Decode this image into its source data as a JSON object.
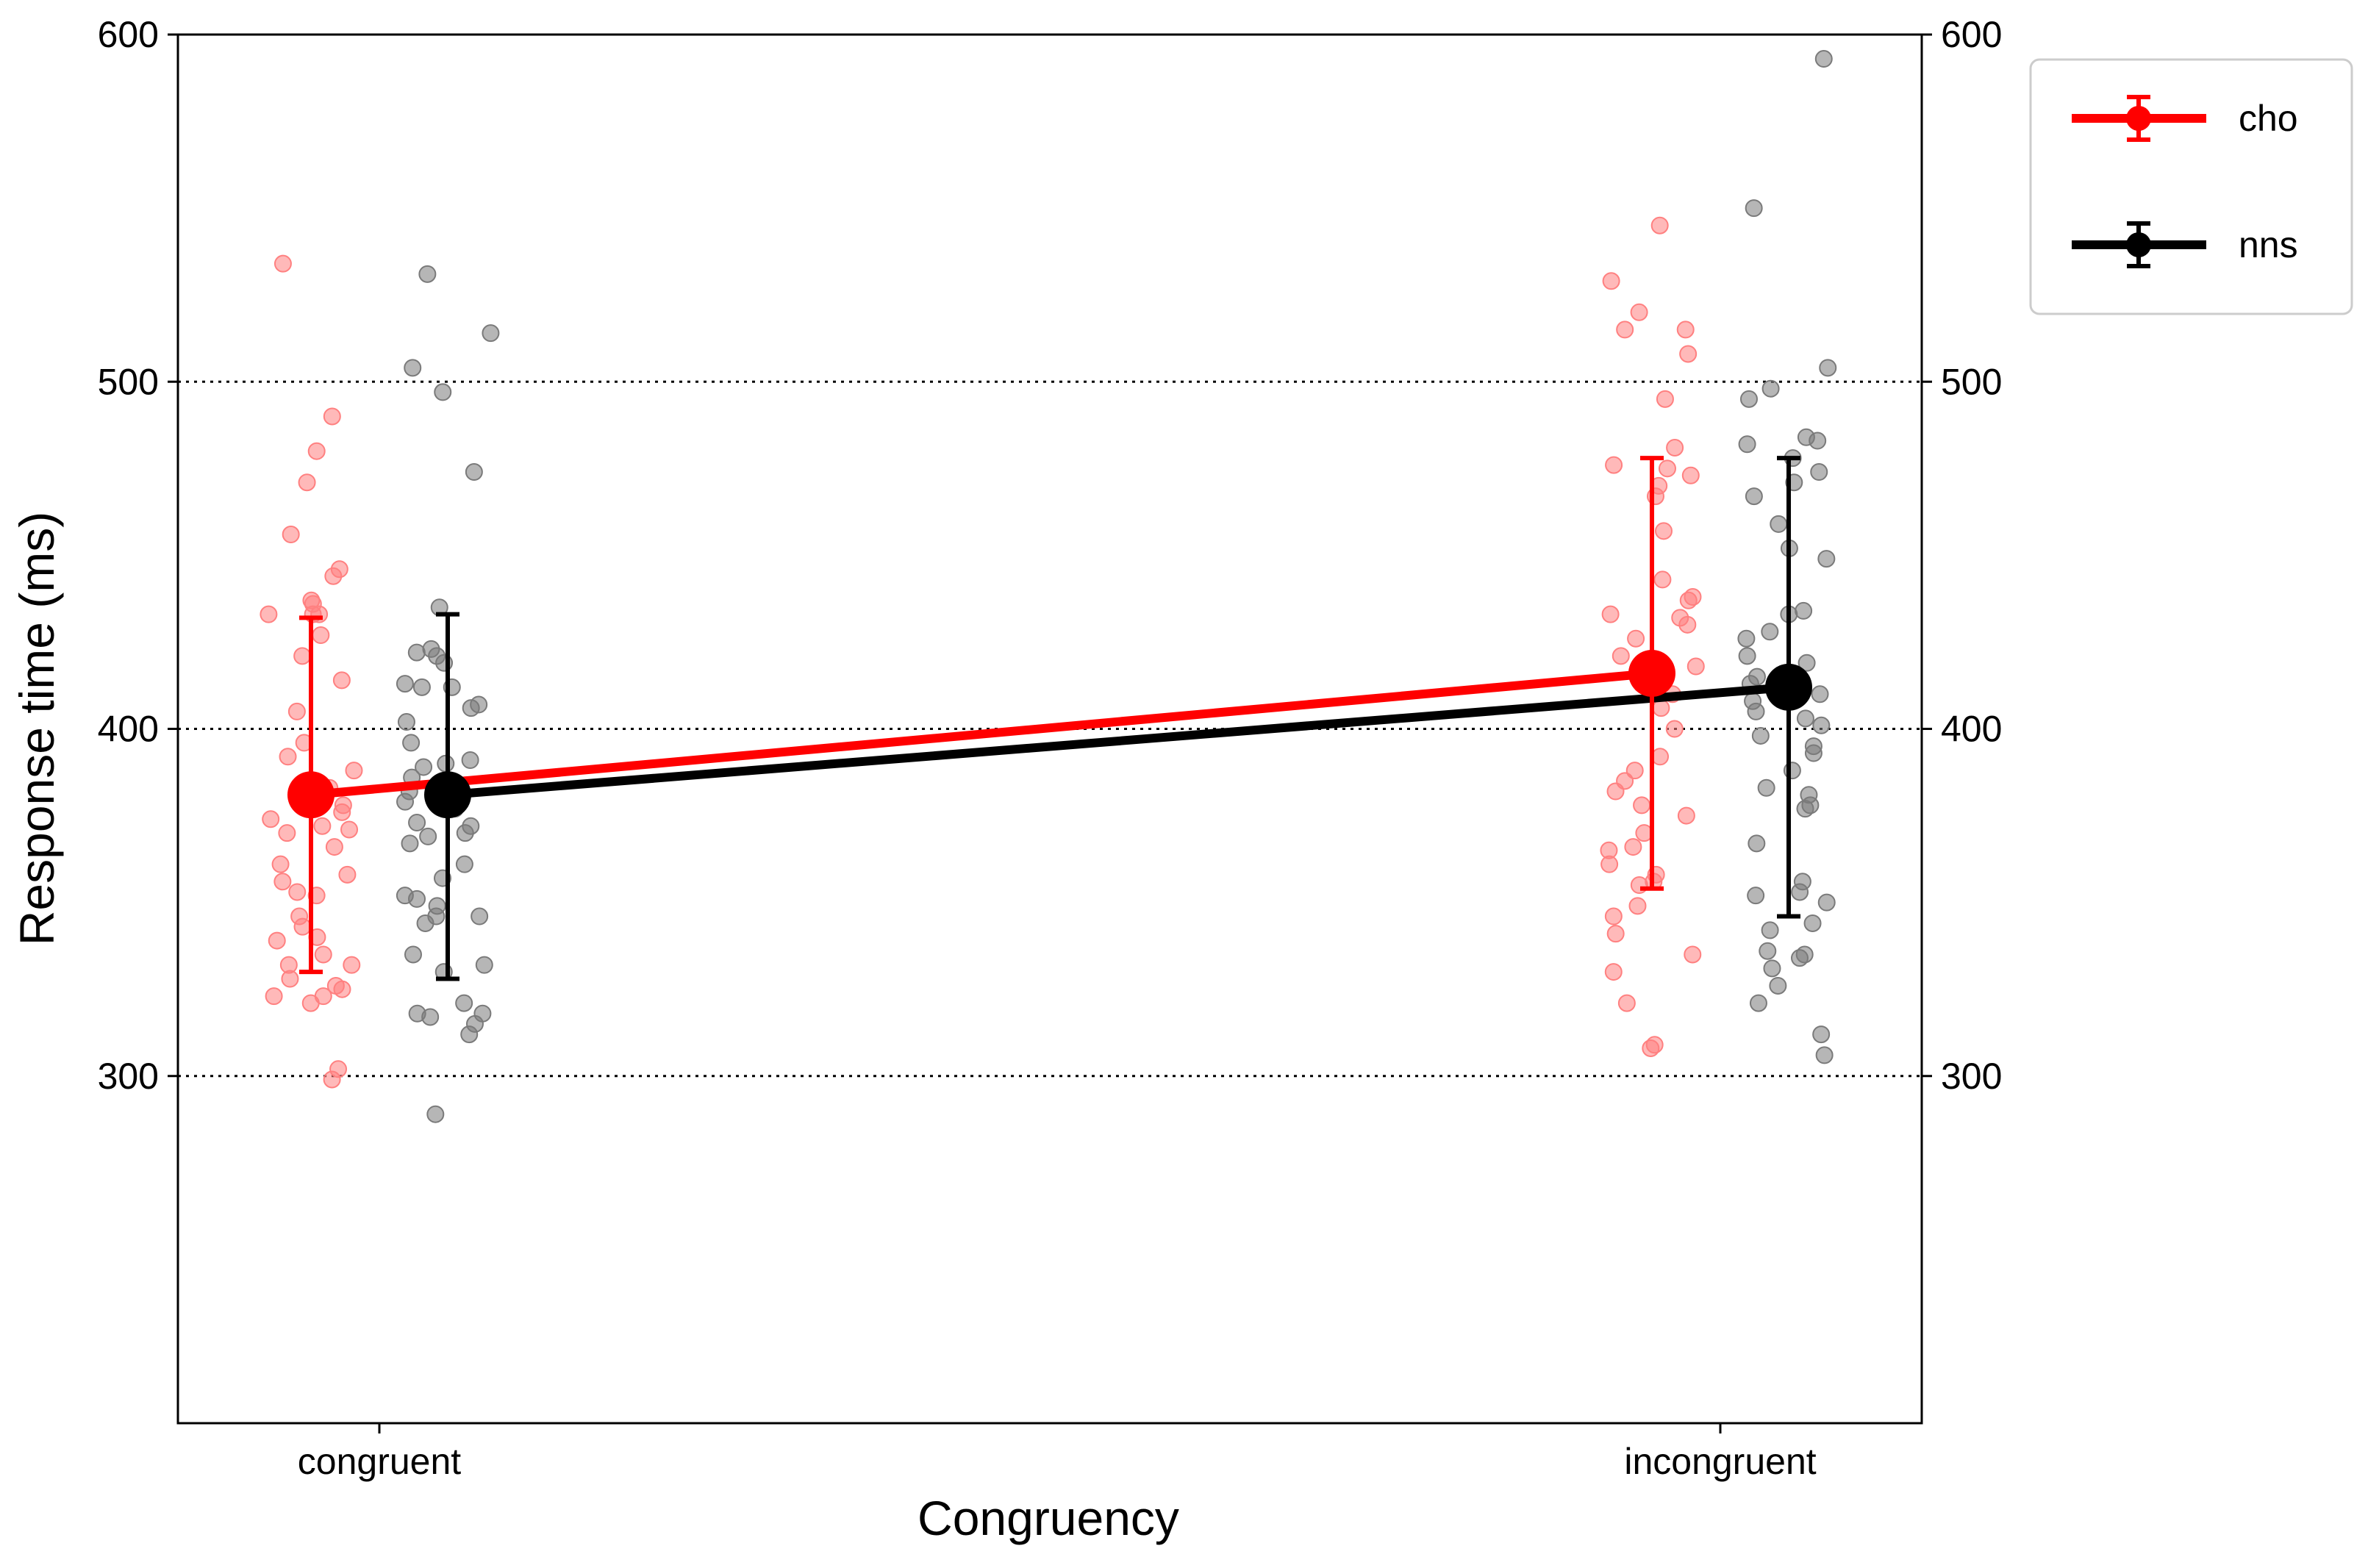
{
  "chart_data": {
    "type": "point",
    "title": "",
    "xlabel": "Congruency",
    "ylabel": "Response time (ms)",
    "ylim": [
      200,
      600
    ],
    "yticks": [
      300,
      400,
      500,
      600
    ],
    "grid": "y dotted at 300/400/500/600",
    "right_axis_ticks": true,
    "legend_position": "top-right outside",
    "categories": [
      "congruent",
      "incongruent"
    ],
    "series": [
      {
        "name": "cho",
        "color": "#ff0000",
        "point_color": "#ff8080",
        "means": [
          381,
          416
        ],
        "errors": [
          [
            330,
            432
          ],
          [
            354,
            478
          ]
        ],
        "points": [
          [
            534,
            490,
            480,
            471,
            456,
            446,
            444,
            437,
            436,
            433,
            433,
            433,
            427,
            421,
            414,
            405,
            396,
            392,
            388,
            383,
            378,
            376,
            374,
            372,
            371,
            370,
            366,
            361,
            358,
            356,
            353,
            352,
            346,
            343,
            340,
            339,
            335,
            332,
            332,
            328,
            326,
            325,
            323,
            323,
            321,
            302,
            299
          ],
          [
            545,
            529,
            520,
            515,
            515,
            508,
            495,
            481,
            476,
            475,
            473,
            470,
            467,
            457,
            443,
            438,
            437,
            433,
            432,
            430,
            426,
            421,
            418,
            415,
            410,
            406,
            400,
            392,
            388,
            385,
            382,
            378,
            375,
            370,
            366,
            365,
            361,
            358,
            356,
            355,
            349,
            346,
            341,
            335,
            330,
            321,
            309,
            308
          ]
        ]
      },
      {
        "name": "nns",
        "color": "#000000",
        "point_color": "#7a7a7a",
        "means": [
          381,
          412
        ],
        "errors": [
          [
            328,
            433
          ],
          [
            346,
            478
          ]
        ],
        "points": [
          [
            531,
            514,
            504,
            497,
            474,
            435,
            423,
            422,
            421,
            419,
            413,
            412,
            412,
            407,
            406,
            402,
            396,
            391,
            390,
            389,
            386,
            382,
            379,
            377,
            373,
            372,
            370,
            369,
            367,
            361,
            357,
            352,
            351,
            349,
            346,
            346,
            344,
            335,
            332,
            330,
            321,
            318,
            318,
            317,
            315,
            312,
            289
          ],
          [
            593,
            550,
            504,
            498,
            495,
            484,
            483,
            482,
            478,
            474,
            471,
            467,
            459,
            452,
            449,
            434,
            433,
            428,
            426,
            421,
            419,
            415,
            413,
            410,
            408,
            405,
            403,
            401,
            398,
            395,
            393,
            388,
            383,
            381,
            378,
            377,
            367,
            356,
            353,
            352,
            350,
            344,
            342,
            336,
            335,
            334,
            331,
            326,
            321,
            312,
            306
          ]
        ]
      }
    ],
    "legend": [
      {
        "label": "cho",
        "color": "#ff0000"
      },
      {
        "label": "nns",
        "color": "#000000"
      }
    ]
  }
}
